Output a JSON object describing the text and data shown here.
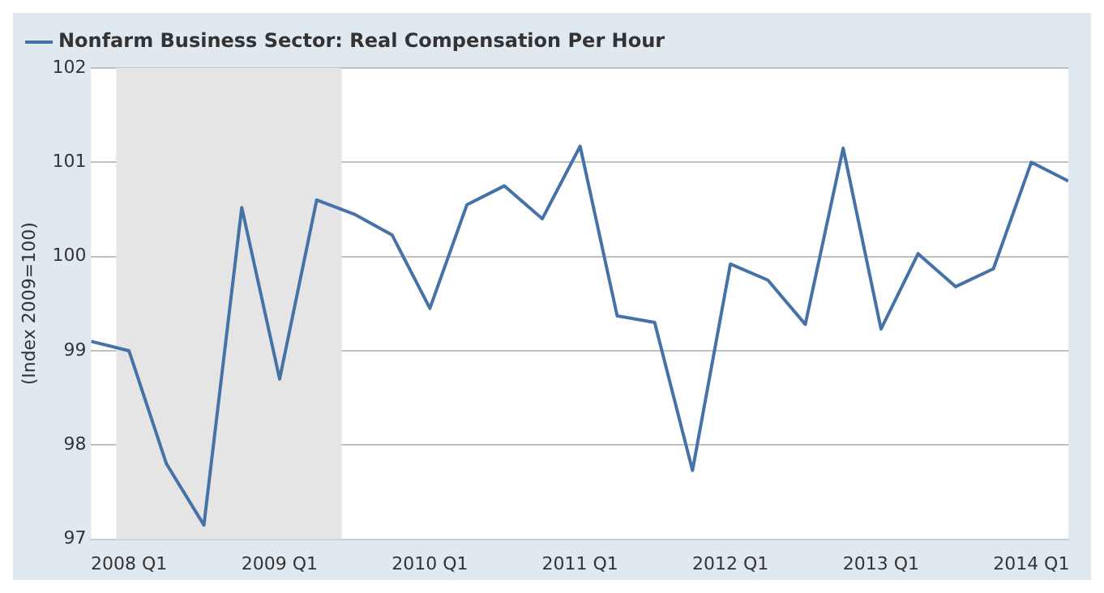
{
  "chart_data": {
    "type": "line",
    "ylabel": "(Index 2009=100)",
    "x": [
      "2007-10-01",
      "2008-01-01",
      "2008-04-01",
      "2008-07-01",
      "2008-10-01",
      "2009-01-01",
      "2009-04-01",
      "2009-07-01",
      "2009-10-01",
      "2010-01-01",
      "2010-04-01",
      "2010-07-01",
      "2010-10-01",
      "2011-01-01",
      "2011-04-01",
      "2011-07-01",
      "2011-10-01",
      "2012-01-01",
      "2012-04-01",
      "2012-07-01",
      "2012-10-01",
      "2013-01-01",
      "2013-04-01",
      "2013-07-01",
      "2013-10-01",
      "2014-01-01",
      "2014-04-01"
    ],
    "series": [
      {
        "name": "Nonfarm Business Sector: Real Compensation Per Hour",
        "color": "#4572a7",
        "values": [
          99.1,
          99.0,
          97.8,
          97.15,
          100.52,
          98.7,
          100.6,
          100.45,
          100.23,
          99.45,
          100.55,
          100.75,
          100.4,
          101.17,
          99.37,
          99.3,
          97.73,
          99.92,
          99.75,
          99.28,
          101.15,
          99.23,
          100.03,
          99.68,
          99.87,
          101.0,
          100.8
        ]
      }
    ],
    "xlim": [
      "2007-10-01",
      "2014-04-01"
    ],
    "xticks": [
      {
        "value": "2008-01-01",
        "label": "2008 Q1"
      },
      {
        "value": "2009-01-01",
        "label": "2009 Q1"
      },
      {
        "value": "2010-01-01",
        "label": "2010 Q1"
      },
      {
        "value": "2011-01-01",
        "label": "2011 Q1"
      },
      {
        "value": "2012-01-01",
        "label": "2012 Q1"
      },
      {
        "value": "2013-01-01",
        "label": "2013 Q1"
      },
      {
        "value": "2014-01-01",
        "label": "2014 Q1"
      }
    ],
    "ylim": [
      97,
      102
    ],
    "yticks": [
      97,
      98,
      99,
      100,
      101,
      102
    ],
    "bands": [
      {
        "axis": "x",
        "from": "2007-12-01",
        "to": "2009-06-01",
        "color": "#e5e5e5"
      }
    ],
    "grid": "y",
    "legend": "top left",
    "marker": "none",
    "line_style": "solid"
  }
}
